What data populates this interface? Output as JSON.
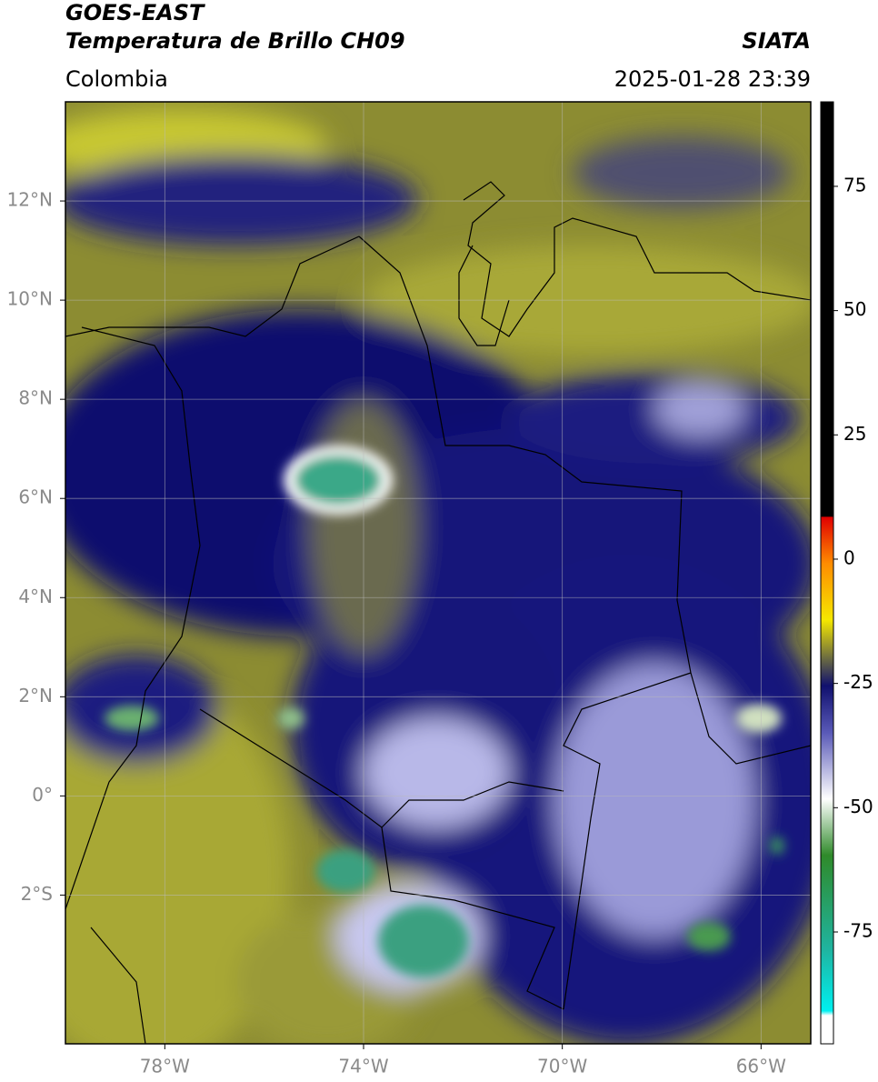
{
  "header": {
    "title": "GOES-EAST",
    "subtitle": "Temperatura de Brillo CH09",
    "source": "SIATA",
    "region": "Colombia",
    "datetime": "2025-01-28 23:39"
  },
  "map": {
    "xlim": [
      -80,
      -65
    ],
    "ylim": [
      -5,
      14
    ],
    "xticks": [
      {
        "value": -78,
        "label": "78°W"
      },
      {
        "value": -74,
        "label": "74°W"
      },
      {
        "value": -70,
        "label": "70°W"
      },
      {
        "value": -66,
        "label": "66°W"
      }
    ],
    "yticks": [
      {
        "value": 12,
        "label": "12°N"
      },
      {
        "value": 10,
        "label": "10°N"
      },
      {
        "value": 8,
        "label": "8°N"
      },
      {
        "value": 6,
        "label": "6°N"
      },
      {
        "value": 4,
        "label": "4°N"
      },
      {
        "value": 2,
        "label": "2°N"
      },
      {
        "value": 0,
        "label": "0°"
      },
      {
        "value": -2,
        "label": "2°S"
      }
    ],
    "grid": true
  },
  "colorbar": {
    "lim": [
      -97.5,
      92
    ],
    "ticks": [
      75,
      50,
      25,
      0,
      -25,
      -50,
      -75
    ]
  }
}
